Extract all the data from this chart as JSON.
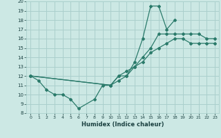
{
  "xlabel": "Humidex (Indice chaleur)",
  "bg_color": "#cce8e4",
  "grid_color": "#aacfcc",
  "line_color": "#2a7a6a",
  "xlim": [
    -0.5,
    23.5
  ],
  "ylim": [
    8,
    20
  ],
  "xticks": [
    0,
    1,
    2,
    3,
    4,
    5,
    6,
    7,
    8,
    9,
    10,
    11,
    12,
    13,
    14,
    15,
    16,
    17,
    18,
    19,
    20,
    21,
    22,
    23
  ],
  "yticks": [
    8,
    9,
    10,
    11,
    12,
    13,
    14,
    15,
    16,
    17,
    18,
    19,
    20
  ],
  "line1_x": [
    0,
    1,
    2,
    3,
    4,
    5,
    6,
    8,
    9,
    10,
    11,
    12,
    13,
    14,
    15,
    16,
    17,
    18
  ],
  "line1_y": [
    12,
    11.5,
    10.5,
    10,
    10,
    9.5,
    8.5,
    9.5,
    11,
    11,
    12,
    12,
    13.5,
    16,
    19.5,
    19.5,
    17,
    18
  ],
  "line2_x": [
    0,
    10,
    11,
    12,
    13,
    14,
    15,
    16,
    17,
    18,
    19,
    20,
    21,
    22,
    23
  ],
  "line2_y": [
    12,
    11,
    12,
    12.5,
    13,
    14,
    15,
    16.5,
    16.5,
    16.5,
    16.5,
    16.5,
    16.5,
    16,
    16
  ],
  "line3_x": [
    0,
    10,
    11,
    12,
    13,
    14,
    15,
    16,
    17,
    18,
    19,
    20,
    21,
    22,
    23
  ],
  "line3_y": [
    12,
    11,
    11.5,
    12,
    13,
    13.5,
    14.5,
    15,
    15.5,
    16,
    16,
    15.5,
    15.5,
    15.5,
    15.5
  ]
}
